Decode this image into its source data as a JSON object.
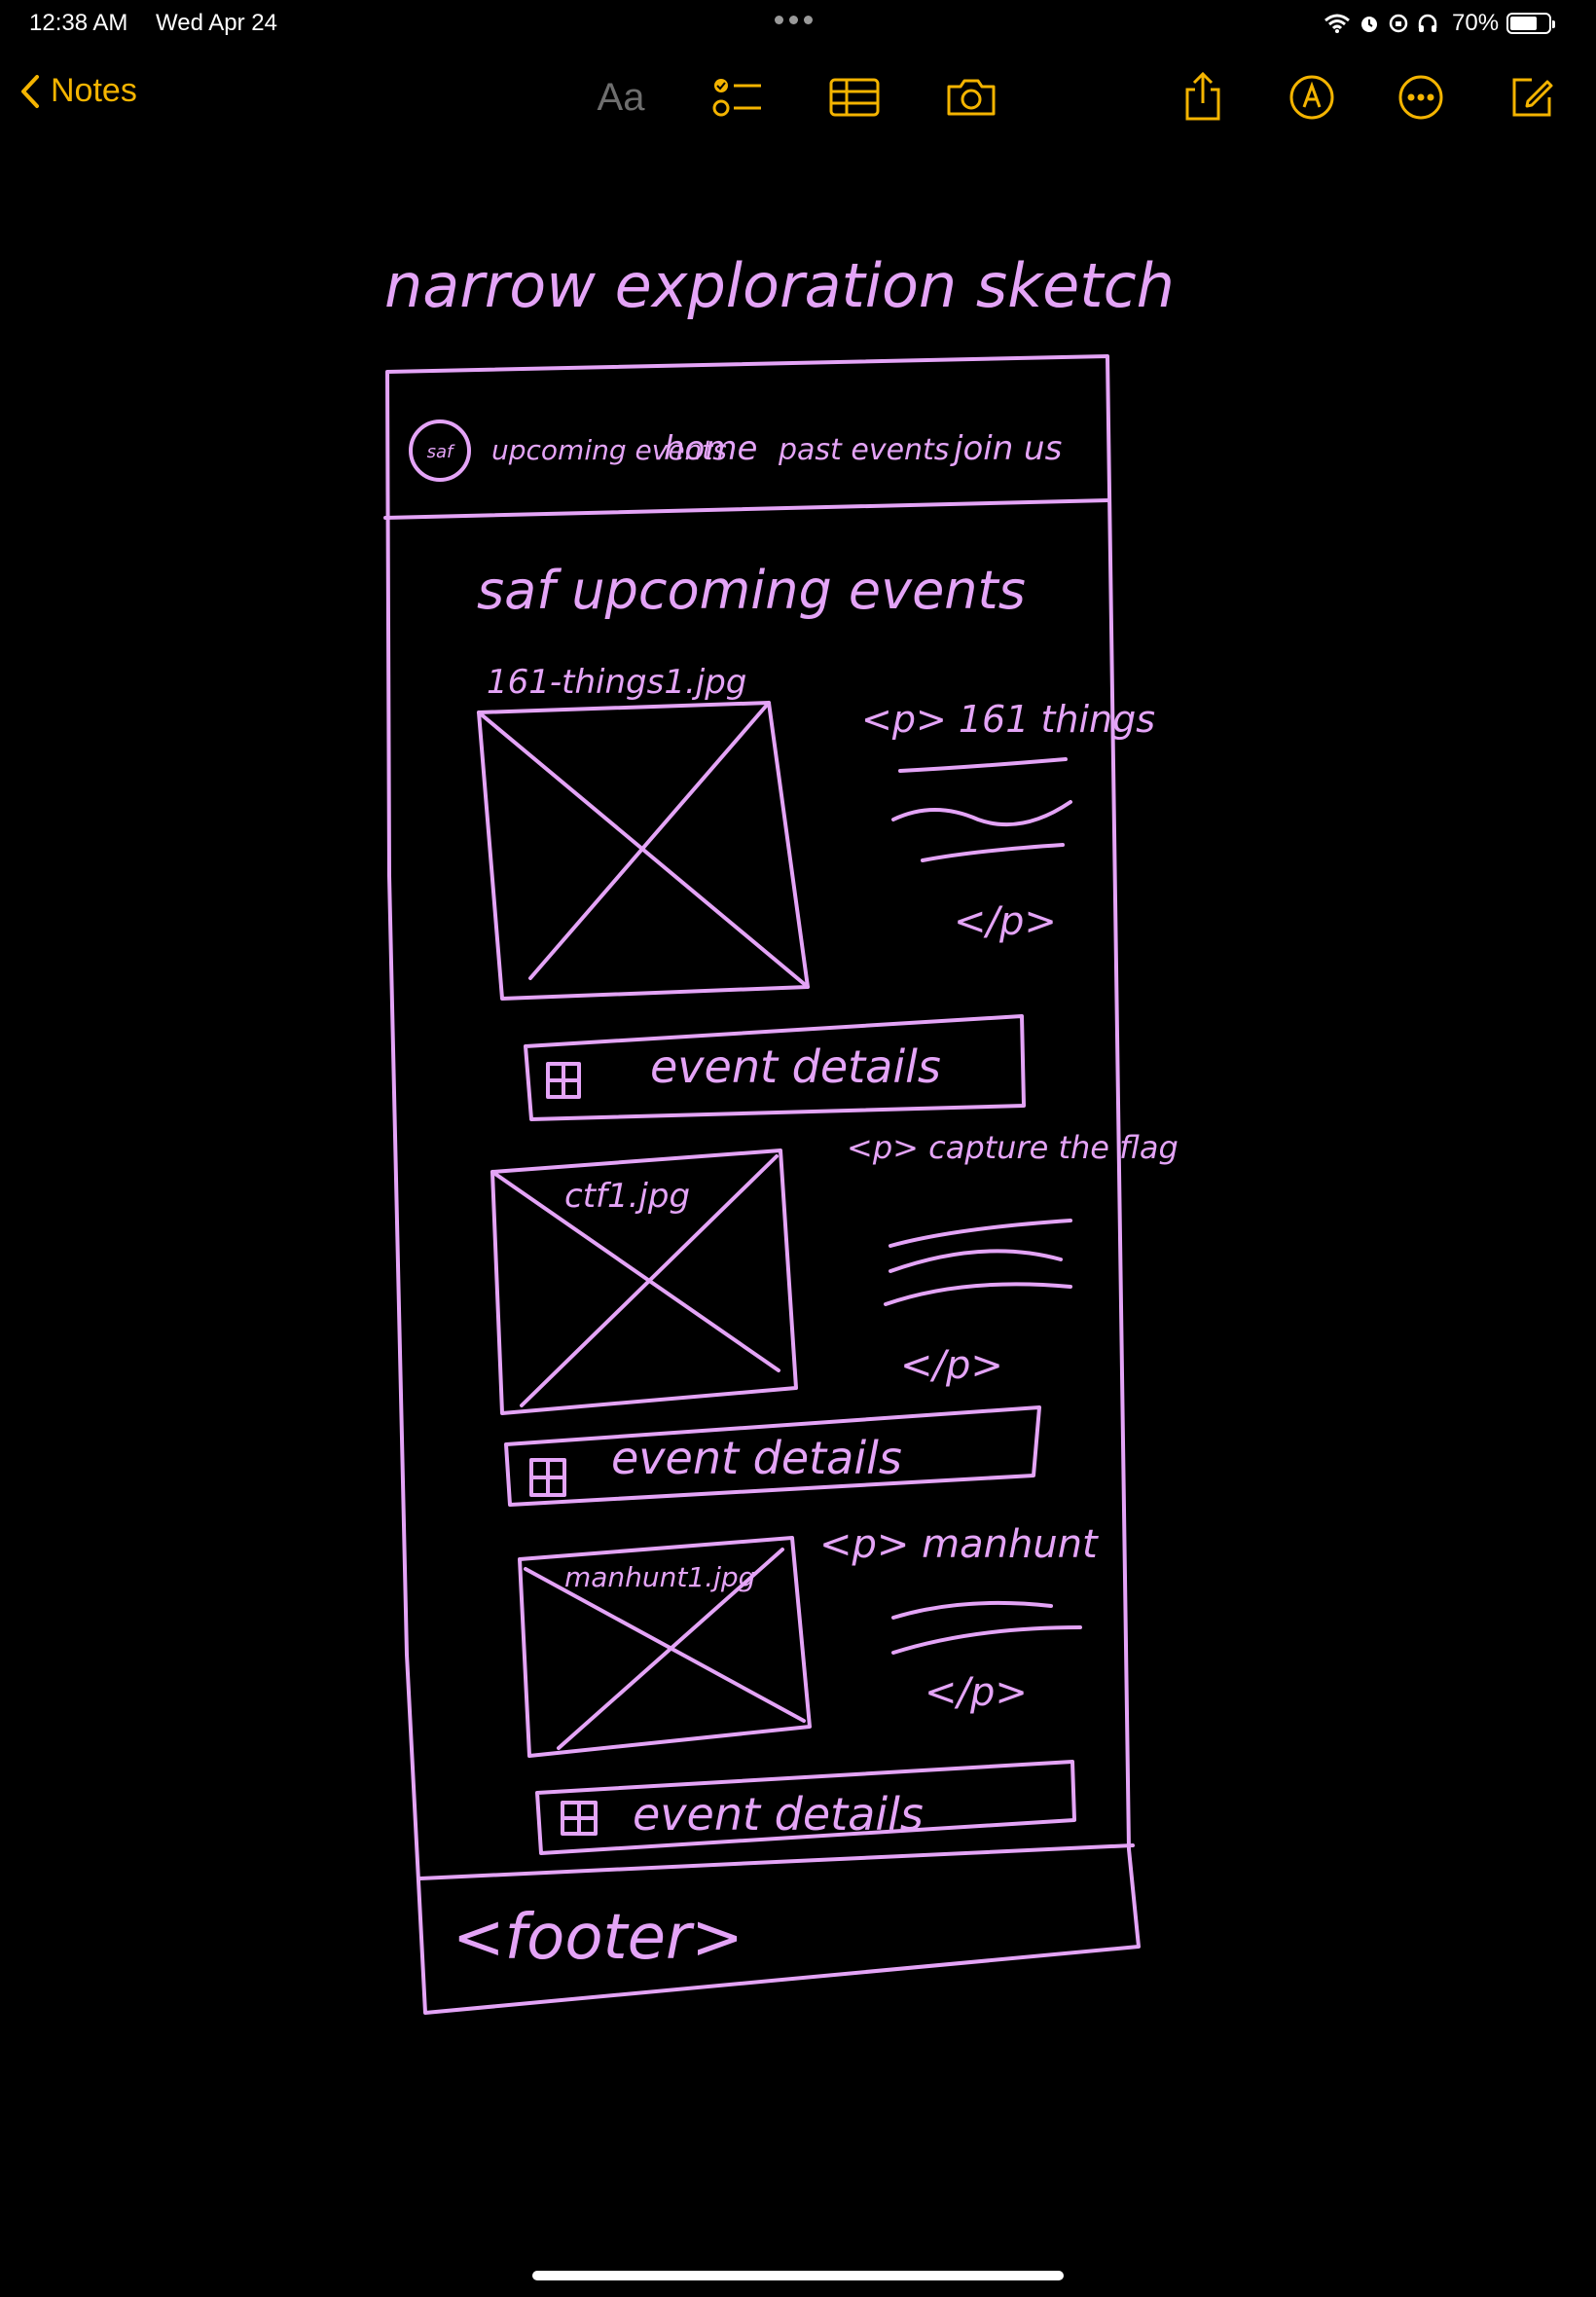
{
  "status_bar": {
    "time": "12:38 AM",
    "date": "Wed Apr 24",
    "battery_percent": "70%",
    "battery_level": 0.7,
    "icons": [
      "wifi-icon",
      "alarm-icon",
      "orientation-lock-icon",
      "headphones-icon",
      "battery-icon"
    ]
  },
  "toolbar": {
    "back_label": "Notes",
    "format_label": "Aa",
    "icons": [
      "checklist-icon",
      "table-icon",
      "camera-icon",
      "share-icon",
      "markup-icon",
      "more-icon",
      "compose-icon"
    ]
  },
  "colors": {
    "background": "#000000",
    "accent": "#f4b400",
    "ink": "#e4a4f7"
  },
  "sketch": {
    "title": "narrow exploration sketch",
    "nav": {
      "logo": "saf",
      "items": [
        "upcoming events",
        "home",
        "past events",
        "join us"
      ]
    },
    "heading": "saf upcoming events",
    "events": [
      {
        "image_label": "161-things1.jpg",
        "p_open": "<p> 161 things",
        "p_close": "</p>",
        "button_label": "event details"
      },
      {
        "image_label": "ctf1.jpg",
        "p_open": "<p> capture the flag",
        "p_close": "</p>",
        "button_label": "event details"
      },
      {
        "image_label": "manhunt1.jpg",
        "p_open": "<p> manhunt",
        "p_close": "</p>",
        "button_label": "event details"
      }
    ],
    "footer": "<footer>"
  }
}
